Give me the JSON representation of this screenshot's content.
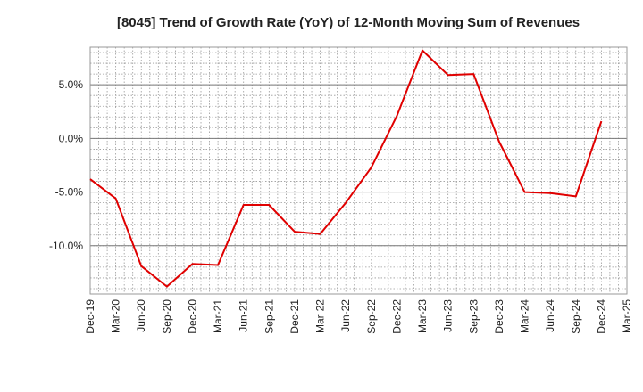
{
  "chart_data": {
    "type": "line",
    "title": "[8045]  Trend of Growth Rate (YoY) of 12-Month Moving Sum of Revenues",
    "xlabel": "",
    "ylabel": "",
    "x_ticks": [
      "Dec-19",
      "Mar-20",
      "Jun-20",
      "Sep-20",
      "Dec-20",
      "Mar-21",
      "Jun-21",
      "Sep-21",
      "Dec-21",
      "Mar-22",
      "Jun-22",
      "Sep-22",
      "Dec-22",
      "Mar-23",
      "Jun-23",
      "Sep-23",
      "Dec-23",
      "Mar-24",
      "Jun-24",
      "Sep-24",
      "Dec-24",
      "Mar-25"
    ],
    "y_ticks": [
      {
        "value": 5,
        "label": "5.0%"
      },
      {
        "value": 0,
        "label": "0.0%"
      },
      {
        "value": -5,
        "label": "-5.0%"
      },
      {
        "value": -10,
        "label": "-10.0%"
      }
    ],
    "ylim": [
      -14.5,
      8.5
    ],
    "grid": true,
    "series": [
      {
        "color": "#e00000",
        "x": [
          "Dec-19",
          "Mar-20",
          "Jun-20",
          "Sep-20",
          "Dec-20",
          "Mar-21",
          "Jun-21",
          "Sep-21",
          "Dec-21",
          "Mar-22",
          "Jun-22",
          "Sep-22",
          "Dec-22",
          "Mar-23",
          "Jun-23",
          "Sep-23",
          "Dec-23",
          "Mar-24",
          "Jun-24",
          "Sep-24",
          "Dec-24"
        ],
        "values": [
          -3.8,
          -5.6,
          -11.9,
          -13.8,
          -11.7,
          -11.8,
          -6.2,
          -6.2,
          -8.7,
          -8.9,
          -6.0,
          -2.7,
          2.1,
          8.2,
          5.9,
          6.0,
          -0.3,
          -5.0,
          -5.1,
          -5.4,
          1.6
        ]
      }
    ]
  }
}
